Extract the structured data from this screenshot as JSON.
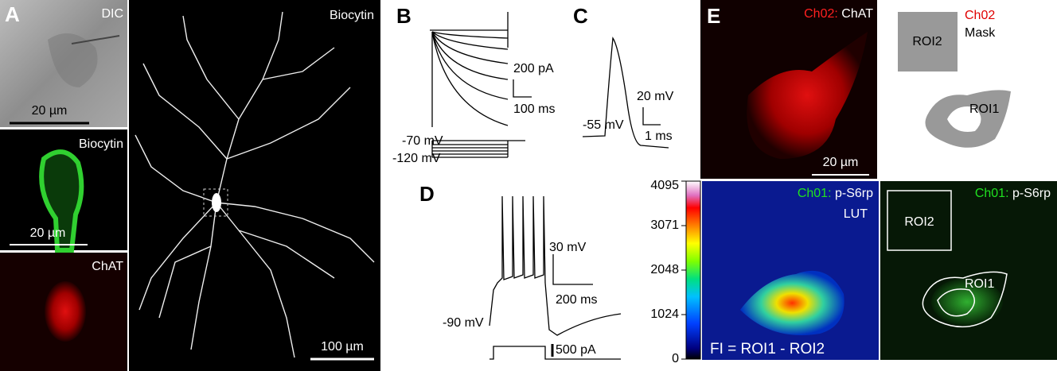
{
  "panel_a": {
    "label": "A",
    "dic": {
      "title": "DIC",
      "scale_bar": "20 µm"
    },
    "biocytin_soma": {
      "title": "Biocytin",
      "scale_bar": "20 µm"
    },
    "chat": {
      "title": "ChAT"
    },
    "morphology": {
      "title": "Biocytin",
      "scale_bar": "100 µm"
    }
  },
  "panel_b": {
    "label": "B",
    "scale_y": "200 pA",
    "scale_x": "100 ms",
    "hold": "-70 mV",
    "step": "-120 mV"
  },
  "panel_c": {
    "label": "C",
    "scale_y": "20 mV",
    "scale_x": "1 ms",
    "baseline": "-55 mV"
  },
  "panel_d": {
    "label": "D",
    "scale_y": "30 mV",
    "scale_x": "200 ms",
    "baseline": "-90 mV",
    "current": "500 pA"
  },
  "panel_e": {
    "label": "E",
    "chat_image": {
      "channel": "Ch02:",
      "title": "ChAT",
      "scale_bar": "20 µm"
    },
    "mask": {
      "channel": "Ch02",
      "title": "Mask",
      "roi2": "ROI2",
      "roi1": "ROI1"
    },
    "lut_image": {
      "channel": "Ch01:",
      "title": "p-S6rp",
      "lut": "LUT",
      "formula": "FI = ROI1 - ROI2"
    },
    "roi_image": {
      "channel": "Ch01:",
      "title": "p-S6rp",
      "roi2": "ROI2",
      "roi1": "ROI1"
    },
    "colorbar": {
      "range": [
        0,
        4095
      ],
      "ticks": [
        0,
        1024,
        2048,
        3071,
        4095
      ]
    }
  }
}
